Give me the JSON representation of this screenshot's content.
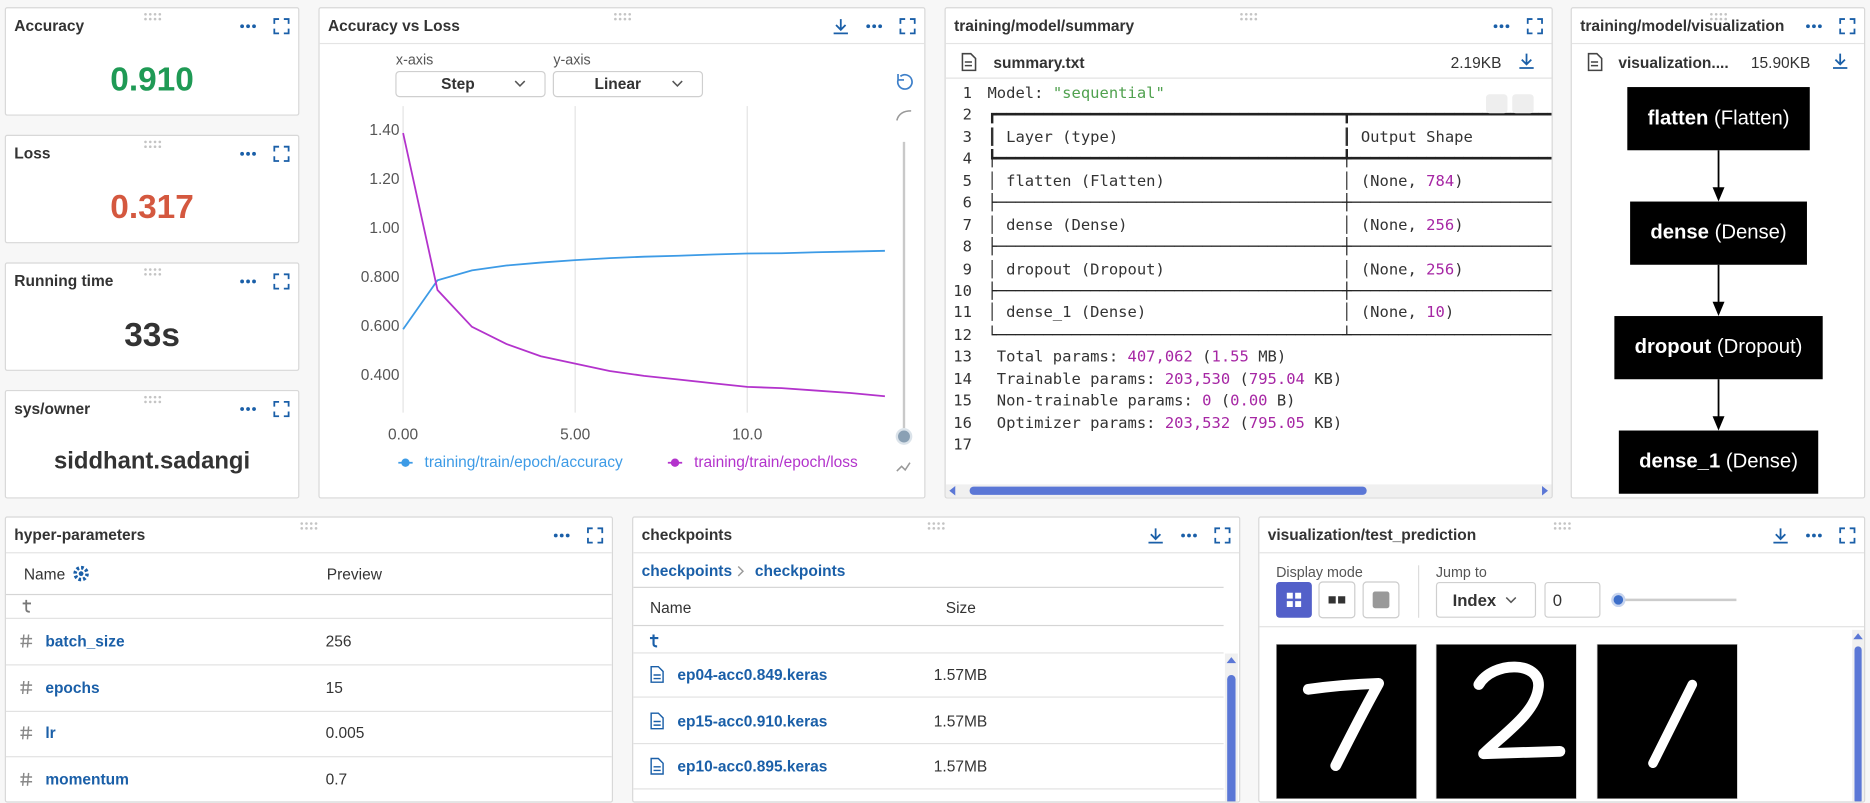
{
  "metrics": [
    {
      "title": "Accuracy",
      "value": "0.910",
      "color": "#1f9a55"
    },
    {
      "title": "Loss",
      "value": "0.317",
      "color": "#d4583f"
    },
    {
      "title": "Running time",
      "value": "33s",
      "color": "#333333"
    },
    {
      "title": "sys/owner",
      "value": "siddhant.sadangi",
      "color": "#333333"
    }
  ],
  "chart_data": {
    "type": "line",
    "title": "Accuracy vs Loss",
    "x_axis_label": "x-axis",
    "x_axis_value": "Step",
    "y_axis_label": "y-axis",
    "y_axis_value": "Linear",
    "x": [
      0,
      1,
      2,
      3,
      4,
      5,
      6,
      7,
      8,
      9,
      10,
      11,
      12,
      13,
      14
    ],
    "series": [
      {
        "name": "training/train/epoch/accuracy",
        "color": "#3d9be6",
        "values": [
          0.59,
          0.79,
          0.83,
          0.85,
          0.862,
          0.872,
          0.88,
          0.886,
          0.89,
          0.895,
          0.899,
          0.9,
          0.904,
          0.907,
          0.91
        ]
      },
      {
        "name": "training/train/epoch/loss",
        "color": "#b333cc",
        "values": [
          1.39,
          0.75,
          0.6,
          0.53,
          0.48,
          0.45,
          0.42,
          0.4,
          0.385,
          0.37,
          0.355,
          0.35,
          0.34,
          0.33,
          0.317
        ]
      }
    ],
    "xlim": [
      0,
      14
    ],
    "ylim": [
      0.25,
      1.5
    ],
    "xticks": [
      {
        "value": 0,
        "label": "0.00"
      },
      {
        "value": 5,
        "label": "5.00"
      },
      {
        "value": 10,
        "label": "10.0"
      }
    ],
    "yticks": [
      {
        "value": 1.4,
        "label": "1.40"
      },
      {
        "value": 1.2,
        "label": "1.20"
      },
      {
        "value": 1,
        "label": "1.00"
      },
      {
        "value": 0.8,
        "label": "0.800"
      },
      {
        "value": 0.6,
        "label": "0.600"
      },
      {
        "value": 0.4,
        "label": "0.400"
      }
    ],
    "grid": "x"
  },
  "summary": {
    "title": "training/model/summary",
    "file": "summary.txt",
    "size": "2.19KB",
    "lines": [
      {
        "n": "1",
        "text": "Model: \"sequential\""
      },
      {
        "n": "2",
        "text": "┏━━━━━━━━━━━━━━━━━━━━━━━━━━━━━━━━━━━━━┳━━━━━━━━━━━━━━━━━━━━━━"
      },
      {
        "n": "3",
        "text": "┃ Layer (type)                        ┃ Output Shape"
      },
      {
        "n": "4",
        "text": "┡━━━━━━━━━━━━━━━━━━━━━━━━━━━━━━━━━━━━━╇━━━━━━━━━━━━━━━━━━━━━━"
      },
      {
        "n": "5",
        "text": "│ flatten (Flatten)                   │ (None, 784)"
      },
      {
        "n": "6",
        "text": "├─────────────────────────────────────┼──────────────────────"
      },
      {
        "n": "7",
        "text": "│ dense (Dense)                       │ (None, 256)"
      },
      {
        "n": "8",
        "text": "├─────────────────────────────────────┼──────────────────────"
      },
      {
        "n": "9",
        "text": "│ dropout (Dropout)                   │ (None, 256)"
      },
      {
        "n": "10",
        "text": "├─────────────────────────────────────┼──────────────────────"
      },
      {
        "n": "11",
        "text": "│ dense_1 (Dense)                     │ (None, 10)"
      },
      {
        "n": "12",
        "text": "└─────────────────────────────────────┴──────────────────────"
      },
      {
        "n": "13",
        "text": " Total params: 407,062 (1.55 MB)"
      },
      {
        "n": "14",
        "text": " Trainable params: 203,530 (795.04 KB)"
      },
      {
        "n": "15",
        "text": " Non-trainable params: 0 (0.00 B)"
      },
      {
        "n": "16",
        "text": " Optimizer params: 203,532 (795.05 KB)"
      },
      {
        "n": "17"
      }
    ]
  },
  "visualization": {
    "title": "training/model/visualization",
    "file": "visualization....",
    "size": "15.90KB",
    "nodes": [
      {
        "name": "flatten",
        "type": "(Flatten)"
      },
      {
        "name": "dense",
        "type": "(Dense)"
      },
      {
        "name": "dropout",
        "type": "(Dropout)"
      },
      {
        "name": "dense_1",
        "type": "(Dense)"
      }
    ]
  },
  "hyper_parameters": {
    "title": "hyper-parameters",
    "columns": [
      "Name",
      "Preview"
    ],
    "rows": [
      [
        "batch_size",
        "256"
      ],
      [
        "epochs",
        "15"
      ],
      [
        "lr",
        "0.005"
      ],
      [
        "momentum",
        "0.7"
      ]
    ]
  },
  "checkpoints": {
    "title": "checkpoints",
    "breadcrumb": [
      "checkpoints",
      "checkpoints"
    ],
    "columns": [
      "Name",
      "Size"
    ],
    "rows": [
      [
        "ep04-acc0.849.keras",
        "1.57MB"
      ],
      [
        "ep15-acc0.910.keras",
        "1.57MB"
      ],
      [
        "ep10-acc0.895.keras",
        "1.57MB"
      ]
    ]
  },
  "test_prediction": {
    "title": "visualization/test_prediction",
    "display_mode_label": "Display mode",
    "jump_to_label": "Jump to",
    "jump_mode": "Index",
    "jump_value": "0"
  }
}
